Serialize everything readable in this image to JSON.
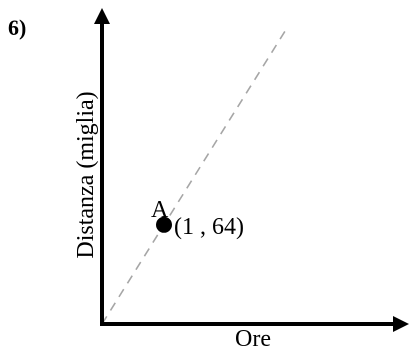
{
  "problem_number": "6)",
  "colors": {
    "axis": "#000000",
    "trend_line": "#a6a6a6",
    "point": "#000000"
  },
  "chart_data": {
    "type": "line",
    "title": "",
    "xlabel": "Ore",
    "ylabel": "Distanza (miglia)",
    "grid": false,
    "x_ticks": [],
    "y_ticks": [],
    "series": [
      {
        "style": "dashed",
        "x": [
          0,
          3
        ],
        "y": [
          0,
          192
        ]
      }
    ],
    "points": [
      {
        "label": "A",
        "coord_text": "(1 , 64)",
        "x": 1,
        "y": 64
      }
    ]
  }
}
